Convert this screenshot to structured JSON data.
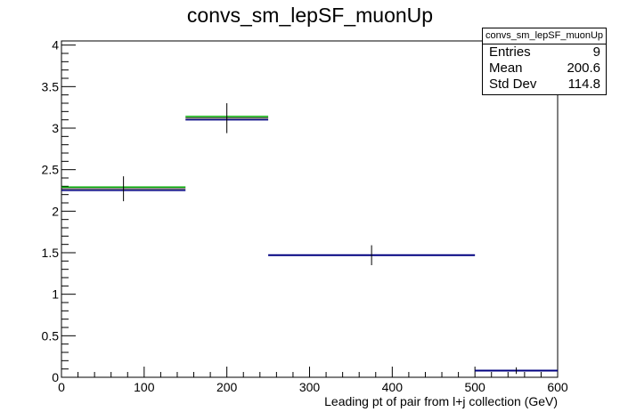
{
  "chart_data": {
    "type": "line",
    "title": "convs_sm_lepSF_muonUp",
    "xlabel": "Leading pt of pair from l+j collection (GeV)",
    "ylabel": "",
    "xlim": [
      0,
      600
    ],
    "ylim": [
      0,
      4.05
    ],
    "x_ticks": [
      "0",
      "100",
      "200",
      "300",
      "400",
      "500",
      "600"
    ],
    "y_ticks": [
      "0",
      "0.5",
      "1",
      "1.5",
      "2",
      "2.5",
      "3",
      "3.5",
      "4"
    ],
    "bins": [
      {
        "x_low": 0,
        "x_high": 150,
        "x_center": 75,
        "value": 2.27,
        "error": 0.15,
        "band": [
          2.25,
          2.29
        ]
      },
      {
        "x_low": 150,
        "x_high": 250,
        "x_center": 200,
        "value": 3.12,
        "error": 0.18,
        "band": [
          3.1,
          3.14
        ]
      },
      {
        "x_low": 250,
        "x_high": 500,
        "x_center": 375,
        "value": 1.47,
        "error": 0.12,
        "band": [
          1.47,
          1.47
        ]
      },
      {
        "x_low": 500,
        "x_high": 600,
        "x_center": 550,
        "value": 0.08,
        "error": 0.04,
        "band": [
          0.08,
          0.08
        ]
      }
    ],
    "stats": {
      "name": "convs_sm_lepSF_muonUp",
      "entries_label": "Entries",
      "entries": "9",
      "mean_label": "Mean",
      "mean": "200.6",
      "stddev_label": "Std Dev",
      "stddev": "114.8"
    },
    "colors": {
      "nominal": "#000000",
      "band_up": "#00aa00",
      "band_down": "#000080",
      "axis": "#000000"
    },
    "grid": false
  }
}
